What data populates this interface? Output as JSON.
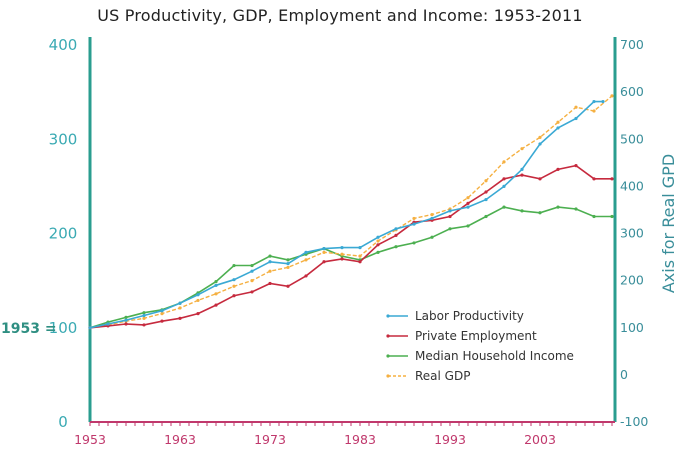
{
  "chart_data": {
    "type": "line",
    "title": "US Productivity, GDP, Employment and Income: 1953-2011",
    "ylabel_right": "Axis for Real GPD",
    "baseline_label": "1953 =",
    "ylim_left": [
      0,
      400
    ],
    "ylim_right": [
      -100,
      700
    ],
    "left_ticks": [
      "400",
      "300",
      "200",
      "100",
      "0"
    ],
    "right_ticks": [
      "700",
      "600",
      "500",
      "400",
      "300",
      "200",
      "100",
      "0",
      "-100"
    ],
    "x_ticks": [
      "1953",
      "1963",
      "1973",
      "1983",
      "1993",
      "2003"
    ],
    "grid": false,
    "legend_position": "lower-right",
    "colors": {
      "Labor Productivity": "#3aa9d4",
      "Private Employment": "#c62a3e",
      "Median Household Income": "#4caf50",
      "Real GDP": "#f5b041"
    },
    "series": [
      {
        "name": "Labor Productivity",
        "axis": "left",
        "x": [
          1953,
          1955,
          1957,
          1959,
          1961,
          1963,
          1965,
          1967,
          1969,
          1971,
          1973,
          1975,
          1977,
          1979,
          1981,
          1983,
          1985,
          1987,
          1989,
          1991,
          1993,
          1995,
          1997,
          1999,
          2001,
          2003,
          2005,
          2007,
          2009,
          2010
        ],
        "y": [
          100,
          104,
          108,
          113,
          118,
          126,
          135,
          145,
          151,
          160,
          170,
          168,
          180,
          184,
          185,
          185,
          196,
          205,
          210,
          216,
          224,
          228,
          236,
          250,
          268,
          295,
          312,
          322,
          340,
          340
        ]
      },
      {
        "name": "Private Employment",
        "axis": "left",
        "x": [
          1953,
          1955,
          1957,
          1959,
          1961,
          1963,
          1965,
          1967,
          1969,
          1971,
          1973,
          1975,
          1977,
          1979,
          1981,
          1983,
          1985,
          1987,
          1989,
          1991,
          1993,
          1995,
          1997,
          1999,
          2001,
          2003,
          2005,
          2007,
          2009,
          2011
        ],
        "y": [
          100,
          102,
          104,
          103,
          107,
          110,
          115,
          124,
          134,
          138,
          147,
          144,
          155,
          170,
          173,
          170,
          188,
          198,
          212,
          214,
          218,
          232,
          244,
          258,
          262,
          258,
          268,
          272,
          258,
          258
        ]
      },
      {
        "name": "Median Household Income",
        "axis": "left",
        "x": [
          1953,
          1955,
          1957,
          1959,
          1961,
          1963,
          1965,
          1967,
          1969,
          1971,
          1973,
          1975,
          1977,
          1979,
          1981,
          1983,
          1985,
          1987,
          1989,
          1991,
          1993,
          1995,
          1997,
          1999,
          2001,
          2003,
          2005,
          2007,
          2009,
          2011
        ],
        "y": [
          100,
          106,
          111,
          116,
          119,
          126,
          137,
          149,
          166,
          166,
          176,
          172,
          178,
          184,
          176,
          172,
          180,
          186,
          190,
          196,
          205,
          208,
          218,
          228,
          224,
          222,
          228,
          226,
          218,
          218
        ]
      },
      {
        "name": "Real GDP",
        "axis": "left",
        "x": [
          1953,
          1955,
          1957,
          1959,
          1961,
          1963,
          1965,
          1967,
          1969,
          1971,
          1973,
          1975,
          1977,
          1979,
          1981,
          1983,
          1985,
          1987,
          1989,
          1991,
          1993,
          1995,
          1997,
          1999,
          2001,
          2003,
          2005,
          2007,
          2009,
          2011
        ],
        "y": [
          100,
          103,
          107,
          110,
          115,
          121,
          129,
          136,
          144,
          150,
          160,
          164,
          172,
          180,
          178,
          176,
          192,
          204,
          216,
          220,
          226,
          238,
          256,
          276,
          290,
          302,
          318,
          334,
          330,
          346
        ]
      }
    ]
  }
}
